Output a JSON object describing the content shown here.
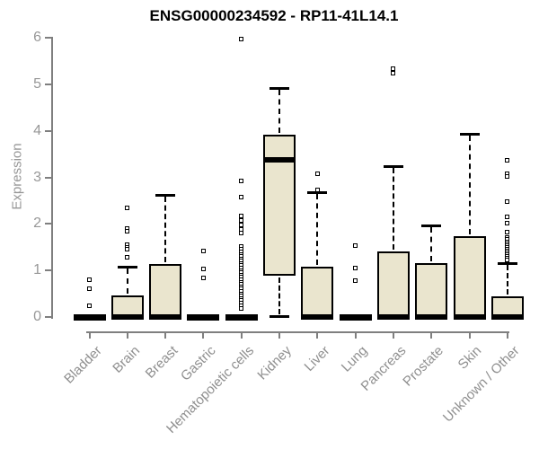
{
  "chart_data": {
    "type": "boxplot",
    "title": "ENSG00000234592 - RP11-41L14.1",
    "ylabel": "Expression",
    "xlabel": "",
    "ylim": [
      0,
      6
    ],
    "yticks": [
      0,
      1,
      2,
      3,
      4,
      5,
      6
    ],
    "grid": false,
    "legend": false,
    "categories": [
      "Bladder",
      "Brain",
      "Breast",
      "Gastric",
      "Hematopoietic cells",
      "Kidney",
      "Liver",
      "Lung",
      "Pancreas",
      "Prostate",
      "Skin",
      "Unknown / Other"
    ],
    "series": [
      {
        "category": "Bladder",
        "q1": 0,
        "median": 0,
        "q3": 0,
        "whisker_low": 0,
        "whisker_high": 0,
        "outliers": [
          0.8,
          0.6,
          0.25
        ]
      },
      {
        "category": "Brain",
        "q1": 0,
        "median": 0,
        "q3": 0.46,
        "whisker_low": 0,
        "whisker_high": 1.08,
        "outliers": [
          2.35,
          1.9,
          1.84,
          1.55,
          1.5,
          1.45,
          1.28
        ]
      },
      {
        "category": "Breast",
        "q1": 0,
        "median": 0,
        "q3": 1.13,
        "whisker_low": 0,
        "whisker_high": 2.62,
        "outliers": []
      },
      {
        "category": "Gastric",
        "q1": 0,
        "median": 0,
        "q3": 0,
        "whisker_low": 0,
        "whisker_high": 0,
        "outliers": [
          1.41,
          1.04,
          0.84
        ]
      },
      {
        "category": "Hematopoietic cells",
        "q1": 0,
        "median": 0,
        "q3": 0,
        "whisker_low": 0,
        "whisker_high": 0,
        "outliers": [
          5.97,
          2.92,
          2.57,
          2.18,
          2.08,
          1.98,
          1.88,
          1.8,
          1.51,
          1.45,
          1.4,
          1.35,
          1.3,
          1.25,
          1.2,
          1.15,
          1.1,
          1.05,
          1.0,
          0.95,
          0.9,
          0.85,
          0.8,
          0.75,
          0.7,
          0.65,
          0.6,
          0.55,
          0.5,
          0.45,
          0.4,
          0.35,
          0.3,
          0.25,
          0.18
        ]
      },
      {
        "category": "Kidney",
        "q1": 0.88,
        "median": 3.38,
        "q3": 3.91,
        "whisker_low": 0.02,
        "whisker_high": 4.92,
        "outliers": []
      },
      {
        "category": "Liver",
        "q1": 0,
        "median": 0,
        "q3": 1.09,
        "whisker_low": 0,
        "whisker_high": 2.68,
        "outliers": [
          3.08,
          2.73
        ]
      },
      {
        "category": "Lung",
        "q1": 0,
        "median": 0,
        "q3": 0,
        "whisker_low": 0,
        "whisker_high": 0,
        "outliers": [
          1.54,
          1.05,
          0.78
        ]
      },
      {
        "category": "Pancreas",
        "q1": 0,
        "median": 0,
        "q3": 1.41,
        "whisker_low": 0,
        "whisker_high": 3.24,
        "outliers": [
          5.33,
          5.24
        ]
      },
      {
        "category": "Prostate",
        "q1": 0,
        "median": 0,
        "q3": 1.15,
        "whisker_low": 0,
        "whisker_high": 1.97,
        "outliers": []
      },
      {
        "category": "Skin",
        "q1": 0,
        "median": 0,
        "q3": 1.73,
        "whisker_low": 0,
        "whisker_high": 3.93,
        "outliers": []
      },
      {
        "category": "Unknown / Other",
        "q1": 0,
        "median": 0,
        "q3": 0.44,
        "whisker_low": 0,
        "whisker_high": 1.15,
        "outliers": [
          3.37,
          3.08,
          3.01,
          2.47,
          2.15,
          2.02,
          1.83,
          1.7,
          1.66,
          1.62,
          1.58,
          1.54,
          1.5,
          1.46,
          1.42,
          1.38,
          1.34,
          1.3,
          1.26,
          1.22
        ]
      }
    ],
    "colors": {
      "box_fill": "#EAE5CE",
      "box_border": "#000000",
      "axis": "#7f7f7f",
      "tick_label": "#979797",
      "title": "#000000"
    }
  }
}
